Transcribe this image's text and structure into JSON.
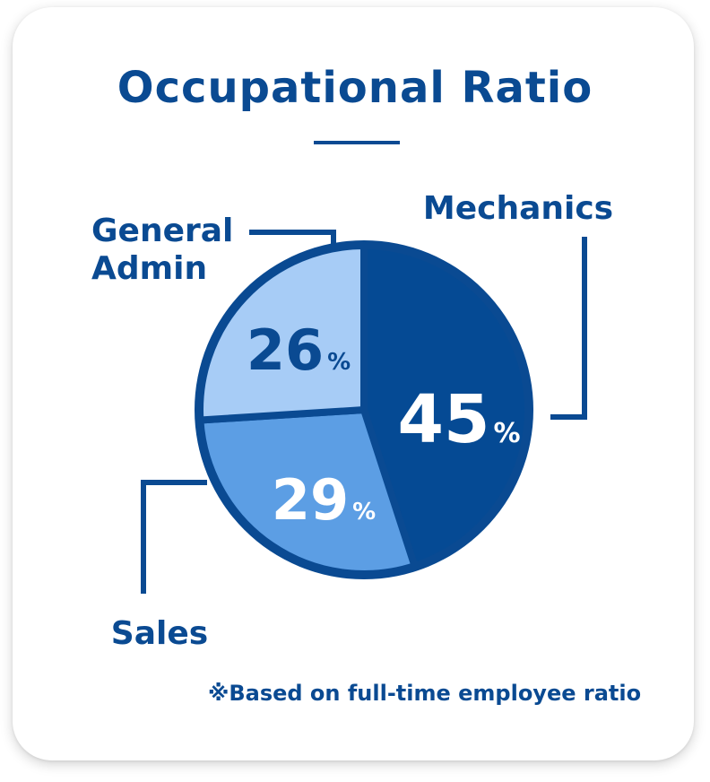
{
  "chart_data": {
    "type": "pie",
    "title": "Occupational Ratio",
    "slices": [
      {
        "label": "Mechanics",
        "value": 45,
        "unit": "%",
        "color": "#054a94",
        "text_color": "#ffffff"
      },
      {
        "label": "Sales",
        "value": 29,
        "unit": "%",
        "color": "#5c9ee4",
        "text_color": "#ffffff"
      },
      {
        "label": "General Admin",
        "label_lines": [
          "General",
          "Admin"
        ],
        "value": 26,
        "unit": "%",
        "color": "#a7ccf6",
        "text_color": "#0a4a92"
      }
    ],
    "outline_color": "#0a4a92",
    "footnote": "※Based on full-time employee ratio"
  }
}
